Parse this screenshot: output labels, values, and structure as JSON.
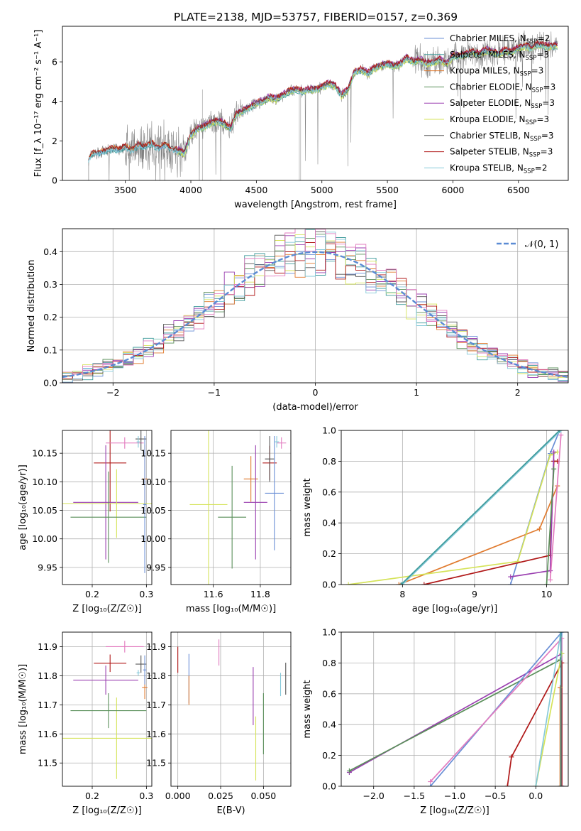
{
  "title": "PLATE=2138, MJD=53757, FIBERID=0157, z=0.369",
  "colors": {
    "Chabrier MILES": "#6a8fd6",
    "Salpeter MILES": "#3d9a9a",
    "Kroupa MILES": "#e07a2e",
    "Chabrier ELODIE": "#5a8f5a",
    "Salpeter ELODIE": "#9a3fb0",
    "Kroupa ELODIE": "#d5e35a",
    "Chabrier STELIB": "#555555",
    "Salpeter STELIB": "#b01818",
    "Kroupa STELIB": "#86c9d9",
    "pink": "#e27bbf",
    "gaussian": "#5b8bd4",
    "data": "#808080"
  },
  "chart_data": [
    {
      "type": "line",
      "name": "spectrum",
      "xlabel": "wavelength [Angstrom, rest frame]",
      "ylabel": "Flux [f_λ 10⁻¹⁷ erg cm⁻² s⁻¹ A⁻¹]",
      "xlim": [
        3020,
        6880
      ],
      "ylim": [
        0,
        7.8
      ],
      "xticks": [
        3500,
        4000,
        4500,
        5000,
        5500,
        6000,
        6500
      ],
      "yticks": [
        0,
        2,
        4,
        6
      ],
      "grid": false,
      "legend_position": "right",
      "legend": [
        {
          "label": "Chabrier MILES, N",
          "sub": "SSP",
          "suffix": "=2",
          "color": "#6a8fd6"
        },
        {
          "label": "Salpeter MILES, N",
          "sub": "SSP",
          "suffix": "=3",
          "color": "#3d9a9a"
        },
        {
          "label": "Kroupa MILES, N",
          "sub": "SSP",
          "suffix": "=3",
          "color": "#e07a2e"
        },
        {
          "label": "Chabrier ELODIE, N",
          "sub": "SSP",
          "suffix": "=3",
          "color": "#5a8f5a"
        },
        {
          "label": "Salpeter ELODIE, N",
          "sub": "SSP",
          "suffix": "=3",
          "color": "#9a3fb0"
        },
        {
          "label": "Kroupa ELODIE, N",
          "sub": "SSP",
          "suffix": "=3",
          "color": "#d5e35a"
        },
        {
          "label": "Chabrier STELIB, N",
          "sub": "SSP",
          "suffix": "=3",
          "color": "#555555"
        },
        {
          "label": "Salpeter STELIB, N",
          "sub": "SSP",
          "suffix": "=3",
          "color": "#b01818"
        },
        {
          "label": "Kroupa STELIB, N",
          "sub": "SSP",
          "suffix": "=2",
          "color": "#86c9d9"
        }
      ],
      "model_x": [
        3220,
        3240,
        3260,
        3300,
        3350,
        3400,
        3450,
        3500,
        3550,
        3600,
        3650,
        3700,
        3750,
        3800,
        3850,
        3900,
        3950,
        4000,
        4050,
        4100,
        4150,
        4200,
        4250,
        4300,
        4350,
        4400,
        4450,
        4500,
        4550,
        4600,
        4650,
        4700,
        4750,
        4800,
        4850,
        4900,
        4950,
        5000,
        5050,
        5100,
        5150,
        5200,
        5250,
        5300,
        5350,
        5400,
        5450,
        5500,
        5550,
        5600,
        5650,
        5700,
        5750,
        5800,
        5850,
        5900,
        5950,
        6000,
        6050,
        6100,
        6150,
        6200,
        6250,
        6300,
        6350,
        6400,
        6450,
        6500,
        6550,
        6600,
        6650,
        6700,
        6750,
        6800
      ],
      "model_y": [
        1.1,
        1.3,
        1.35,
        1.4,
        1.5,
        1.6,
        1.55,
        1.7,
        1.5,
        1.8,
        1.7,
        1.9,
        1.6,
        1.8,
        1.6,
        1.5,
        1.4,
        2.3,
        2.6,
        2.7,
        2.9,
        3.0,
        2.9,
        2.6,
        3.4,
        3.5,
        3.7,
        3.9,
        4.0,
        4.2,
        4.1,
        4.3,
        4.5,
        4.6,
        4.5,
        4.6,
        4.6,
        4.7,
        4.9,
        4.8,
        4.3,
        4.6,
        5.5,
        5.6,
        5.4,
        5.7,
        5.8,
        5.9,
        5.8,
        5.9,
        6.2,
        6.0,
        6.1,
        5.9,
        6.0,
        6.1,
        5.9,
        6.3,
        6.3,
        6.4,
        6.5,
        6.4,
        6.6,
        6.5,
        6.4,
        6.6,
        6.5,
        6.7,
        6.8,
        6.7,
        6.9,
        6.8,
        6.8,
        6.8
      ],
      "model_spread": [
        0,
        -0.08,
        0.06,
        -0.04,
        0.1,
        -0.1,
        0.05,
        0.08,
        -0.06
      ]
    },
    {
      "type": "histogram",
      "name": "residuals",
      "xlabel": "(data-model)/error",
      "ylabel": "Normed distribution",
      "xlim": [
        -2.5,
        2.5
      ],
      "ylim": [
        0,
        0.47
      ],
      "xticks": [
        -2,
        -1,
        0,
        1,
        2
      ],
      "yticks": [
        0,
        0.1,
        0.2,
        0.3,
        0.4
      ],
      "grid": true,
      "legend_position": "top-right",
      "legend": [
        {
          "label": "𝒩(0, 1)",
          "style": "dashed"
        }
      ],
      "bin_width": 0.1,
      "envelope": [
        0.03,
        0.035,
        0.04,
        0.045,
        0.05,
        0.055,
        0.06,
        0.065,
        0.075,
        0.085,
        0.09,
        0.1,
        0.11,
        0.12,
        0.14,
        0.155,
        0.17,
        0.19,
        0.21,
        0.23,
        0.25,
        0.27,
        0.29,
        0.31,
        0.32,
        0.33,
        0.34,
        0.35,
        0.36,
        0.37,
        0.38,
        0.39,
        0.39,
        0.4,
        0.4,
        0.4,
        0.41,
        0.4,
        0.39,
        0.39,
        0.38,
        0.37,
        0.36,
        0.35,
        0.33,
        0.32,
        0.31,
        0.29,
        0.27,
        0.26,
        0.24,
        0.22,
        0.21,
        0.19,
        0.17,
        0.16,
        0.14,
        0.13,
        0.11,
        0.1,
        0.09,
        0.08,
        0.075,
        0.065,
        0.06,
        0.055,
        0.05,
        0.045,
        0.04,
        0.04,
        0.04,
        0.035,
        0.035,
        0.035,
        0.03,
        0.03,
        0.03,
        0.03,
        0.03,
        0.03,
        0.03,
        0.03,
        0.03,
        0.03,
        0.03,
        0.03,
        0.03,
        0.03,
        0.03,
        0.03,
        0.03,
        0.03,
        0.03,
        0.03,
        0.03,
        0.03,
        0.03,
        0.03,
        0.03,
        0.03
      ],
      "gaussian": {
        "mu": 0,
        "sigma": 1
      }
    },
    {
      "type": "errorbar",
      "name": "age-vs-Z",
      "xlabel": "Z [log₁₀(Z/Z☉)]",
      "ylabel": "age  [log₁₀(age/yr)]",
      "xlim": [
        0.145,
        0.31
      ],
      "ylim": [
        9.92,
        10.19
      ],
      "xticks": [
        0.2,
        0.3
      ],
      "yticks": [
        9.95,
        10.0,
        10.05,
        10.1,
        10.15
      ],
      "grid": true,
      "points": [
        {
          "x": 0.233,
          "y": 10.133,
          "xe": 0.03,
          "ye": 0.085,
          "c": "Salpeter STELIB"
        },
        {
          "x": 0.26,
          "y": 10.168,
          "xe": 0.035,
          "ye": 0.01,
          "c": "pink"
        },
        {
          "x": 0.29,
          "y": 10.175,
          "xe": 0.01,
          "ye": 0.02,
          "c": "Chabrier STELIB"
        },
        {
          "x": 0.297,
          "y": 10.105,
          "xe": 0.005,
          "ye": 0.06,
          "c": "Kroupa MILES"
        },
        {
          "x": 0.225,
          "y": 10.064,
          "xe": 0.06,
          "ye": 0.1,
          "c": "Salpeter ELODIE"
        },
        {
          "x": 0.245,
          "y": 10.062,
          "xe": 0.1,
          "ye": 0.06,
          "c": "Kroupa ELODIE"
        },
        {
          "x": 0.23,
          "y": 10.038,
          "xe": 0.07,
          "ye": 0.08,
          "c": "Chabrier ELODIE"
        },
        {
          "x": 0.297,
          "y": 10.06,
          "xe": 0.003,
          "ye": 0.12,
          "c": "Chabrier MILES"
        },
        {
          "x": 0.285,
          "y": 10.17,
          "xe": 0.003,
          "ye": 0.01,
          "c": "Kroupa STELIB"
        }
      ]
    },
    {
      "type": "errorbar",
      "name": "age-vs-mass",
      "xlabel": "mass [log₁₀(M/M☉)]",
      "ylabel": "",
      "xlim": [
        11.42,
        11.93
      ],
      "ylim": [
        9.92,
        10.19
      ],
      "xticks": [
        11.6,
        11.8
      ],
      "yticks": [
        9.95,
        10.0,
        10.05,
        10.1,
        10.15
      ],
      "grid": true,
      "points": [
        {
          "x": 11.84,
          "y": 10.133,
          "xe": 0.03,
          "ye": 0.03,
          "c": "Salpeter STELIB"
        },
        {
          "x": 11.89,
          "y": 10.168,
          "xe": 0.02,
          "ye": 0.01,
          "c": "pink"
        },
        {
          "x": 11.84,
          "y": 10.14,
          "xe": 0.02,
          "ye": 0.04,
          "c": "Chabrier STELIB"
        },
        {
          "x": 11.76,
          "y": 10.105,
          "xe": 0.03,
          "ye": 0.04,
          "c": "Kroupa MILES"
        },
        {
          "x": 11.78,
          "y": 10.064,
          "xe": 0.05,
          "ye": 0.1,
          "c": "Salpeter ELODIE"
        },
        {
          "x": 11.58,
          "y": 10.06,
          "xe": 0.08,
          "ye": 0.14,
          "c": "Kroupa ELODIE"
        },
        {
          "x": 11.68,
          "y": 10.038,
          "xe": 0.06,
          "ye": 0.09,
          "c": "Chabrier ELODIE"
        },
        {
          "x": 11.86,
          "y": 10.08,
          "xe": 0.04,
          "ye": 0.1,
          "c": "Chabrier MILES"
        },
        {
          "x": 11.87,
          "y": 10.17,
          "xe": 0.01,
          "ye": 0.01,
          "c": "Kroupa STELIB"
        }
      ]
    },
    {
      "type": "line",
      "name": "mass-weight-vs-age",
      "xlabel": "age  [log₁₀(age/yr)]",
      "ylabel": "mass weight",
      "xlim": [
        7.15,
        10.3
      ],
      "ylim": [
        0,
        1
      ],
      "xticks": [
        8,
        9,
        10
      ],
      "yticks": [
        0,
        0.2,
        0.4,
        0.6,
        0.8,
        1.0
      ],
      "grid": true,
      "series": [
        {
          "c": "Chabrier MILES",
          "x": [
            9.5,
            10.05,
            10.18
          ],
          "y": [
            0,
            0.85,
            1.0
          ]
        },
        {
          "c": "Kroupa MILES",
          "x": [
            7.95,
            9.9,
            10.15
          ],
          "y": [
            0,
            0.36,
            0.64
          ]
        },
        {
          "c": "Kroupa ELODIE",
          "x": [
            7.25,
            9.6,
            10.05,
            10.15
          ],
          "y": [
            0,
            0.15,
            0.84,
            0.86
          ]
        },
        {
          "c": "Salpeter STELIB",
          "x": [
            8.3,
            10.05,
            10.1,
            10.15
          ],
          "y": [
            0,
            0.19,
            0.8,
            0.8
          ]
        },
        {
          "c": "Salpeter ELODIE",
          "x": [
            9.5,
            10.05,
            10.1
          ],
          "y": [
            0.05,
            0.09,
            0.86
          ]
        },
        {
          "c": "Kroupa STELIB",
          "x": [
            8.0,
            10.2
          ],
          "y": [
            0,
            1.0
          ]
        },
        {
          "c": "Salpeter MILES",
          "x": [
            7.98,
            10.18
          ],
          "y": [
            0,
            1.0
          ]
        },
        {
          "c": "pink",
          "x": [
            10.05,
            10.2
          ],
          "y": [
            0.03,
            0.97
          ]
        },
        {
          "c": "Chabrier ELODIE",
          "x": [
            10.0,
            10.1
          ],
          "y": [
            0,
            0.75
          ]
        }
      ]
    },
    {
      "type": "errorbar",
      "name": "mass-vs-Z",
      "xlabel": "Z [log₁₀(Z/Z☉)]",
      "ylabel": "mass [log₁₀(M/M☉)]",
      "xlim": [
        0.145,
        0.31
      ],
      "ylim": [
        11.42,
        11.95
      ],
      "xticks": [
        0.2,
        0.3
      ],
      "yticks": [
        11.5,
        11.6,
        11.7,
        11.8,
        11.9
      ],
      "grid": true,
      "points": [
        {
          "x": 0.233,
          "y": 11.843,
          "xe": 0.03,
          "ye": 0.03,
          "c": "Salpeter STELIB"
        },
        {
          "x": 0.26,
          "y": 11.9,
          "xe": 0.035,
          "ye": 0.02,
          "c": "pink"
        },
        {
          "x": 0.29,
          "y": 11.84,
          "xe": 0.01,
          "ye": 0.03,
          "c": "Chabrier STELIB"
        },
        {
          "x": 0.297,
          "y": 11.76,
          "xe": 0.005,
          "ye": 0.04,
          "c": "Kroupa MILES"
        },
        {
          "x": 0.225,
          "y": 11.785,
          "xe": 0.06,
          "ye": 0.05,
          "c": "Salpeter ELODIE"
        },
        {
          "x": 0.245,
          "y": 11.585,
          "xe": 0.1,
          "ye": 0.14,
          "c": "Kroupa ELODIE"
        },
        {
          "x": 0.23,
          "y": 11.68,
          "xe": 0.07,
          "ye": 0.06,
          "c": "Chabrier ELODIE"
        },
        {
          "x": 0.297,
          "y": 11.82,
          "xe": 0.003,
          "ye": 0.05,
          "c": "Chabrier MILES"
        },
        {
          "x": 0.285,
          "y": 11.81,
          "xe": 0.003,
          "ye": 0.01,
          "c": "Kroupa STELIB"
        }
      ]
    },
    {
      "type": "errorbar",
      "name": "mass-vs-EBV",
      "xlabel": "E(B-V)",
      "ylabel": "",
      "xlim": [
        -0.004,
        0.066
      ],
      "ylim": [
        11.42,
        11.95
      ],
      "xticks": [
        0.0,
        0.025,
        0.05
      ],
      "tick_labels": [
        "0.000",
        "0.025",
        "0.050"
      ],
      "yticks": [
        11.5,
        11.6,
        11.7,
        11.8,
        11.9
      ],
      "grid": true,
      "points": [
        {
          "x": 0.0,
          "y": 11.855,
          "xe": 0,
          "ye": 0.045,
          "c": "Salpeter STELIB"
        },
        {
          "x": 0.024,
          "y": 11.88,
          "xe": 0,
          "ye": 0.045,
          "c": "pink"
        },
        {
          "x": 0.0065,
          "y": 11.79,
          "xe": 0,
          "ye": 0.085,
          "c": "Chabrier MILES"
        },
        {
          "x": 0.0065,
          "y": 11.75,
          "xe": 0,
          "ye": 0.05,
          "c": "Kroupa MILES"
        },
        {
          "x": 0.044,
          "y": 11.73,
          "xe": 0,
          "ye": 0.1,
          "c": "Salpeter ELODIE"
        },
        {
          "x": 0.0455,
          "y": 11.55,
          "xe": 0,
          "ye": 0.11,
          "c": "Kroupa ELODIE"
        },
        {
          "x": 0.05,
          "y": 11.635,
          "xe": 0,
          "ye": 0.105,
          "c": "Chabrier ELODIE"
        },
        {
          "x": 0.06,
          "y": 11.77,
          "xe": 0,
          "ye": 0.04,
          "c": "Kroupa STELIB"
        },
        {
          "x": 0.063,
          "y": 11.79,
          "xe": 0,
          "ye": 0.055,
          "c": "Chabrier STELIB"
        }
      ]
    },
    {
      "type": "line",
      "name": "mass-weight-vs-Z",
      "xlabel": "Z [log₁₀(Z/Z☉)]",
      "ylabel": "mass weight",
      "xlim": [
        -2.4,
        0.4
      ],
      "ylim": [
        0,
        1
      ],
      "xticks": [
        -2.0,
        -1.5,
        -1.0,
        -0.5,
        0.0
      ],
      "tick_labels": [
        "−2.0",
        "−1.5",
        "−1.0",
        "−0.5",
        "0.0"
      ],
      "yticks": [
        0,
        0.2,
        0.4,
        0.6,
        0.8,
        1.0
      ],
      "grid": true,
      "series": [
        {
          "c": "Salpeter ELODIE",
          "x": [
            -2.3,
            0.32,
            0.32
          ],
          "y": [
            0.09,
            0.86,
            0.0
          ]
        },
        {
          "c": "Chabrier ELODIE",
          "x": [
            -2.3,
            0.3
          ],
          "y": [
            0.1,
            0.82
          ]
        },
        {
          "c": "Chabrier MILES",
          "x": [
            -1.3,
            0.32,
            0.32
          ],
          "y": [
            0.0,
            1.0,
            0.0
          ]
        },
        {
          "c": "pink",
          "x": [
            -1.3,
            0.32,
            0.32
          ],
          "y": [
            0.03,
            0.96,
            0.0
          ]
        },
        {
          "c": "Salpeter STELIB",
          "x": [
            -0.35,
            -0.3,
            0.32,
            0.32
          ],
          "y": [
            0.0,
            0.19,
            0.8,
            0.0
          ]
        },
        {
          "c": "Kroupa ELODIE",
          "x": [
            0.0,
            0.32
          ],
          "y": [
            0.0,
            0.86
          ]
        },
        {
          "c": "Kroupa STELIB",
          "x": [
            0.0,
            0.3
          ],
          "y": [
            0.0,
            0.97
          ]
        },
        {
          "c": "Kroupa MILES",
          "x": [
            0.3,
            0.3
          ],
          "y": [
            0.0,
            0.64
          ]
        },
        {
          "c": "Salpeter MILES",
          "x": [
            0.31,
            0.31
          ],
          "y": [
            0.0,
            1.0
          ]
        }
      ]
    }
  ]
}
